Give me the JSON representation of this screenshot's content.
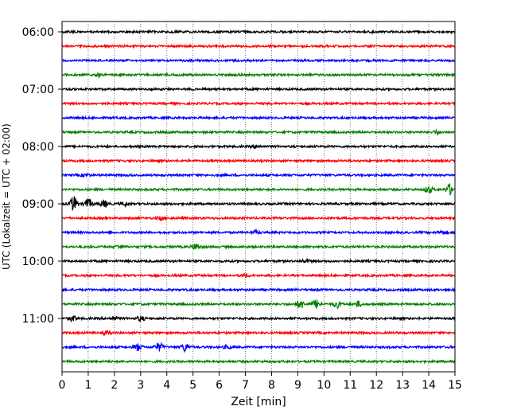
{
  "chart_data": {
    "type": "line",
    "title": "",
    "xlabel": "Zeit  [min]",
    "ylabel": "UTC (Lokalzeit = UTC + 02:00)",
    "xlim": [
      0,
      15
    ],
    "x_ticks": [
      "0",
      "1",
      "2",
      "3",
      "4",
      "5",
      "6",
      "7",
      "8",
      "9",
      "10",
      "11",
      "12",
      "13",
      "14",
      "15"
    ],
    "y_tick_labels": [
      "06:00",
      "07:00",
      "08:00",
      "09:00",
      "10:00",
      "11:00"
    ],
    "grid": "vertical dotted",
    "colors": [
      "#000000",
      "#ff0000",
      "#0000ff",
      "#008000"
    ],
    "traces": [
      {
        "start": "06:00",
        "color": "#000000",
        "bursts": []
      },
      {
        "start": "06:15",
        "color": "#ff0000",
        "bursts": []
      },
      {
        "start": "06:30",
        "color": "#0000ff",
        "bursts": []
      },
      {
        "start": "06:45",
        "color": "#008000",
        "bursts": [
          {
            "t": 1.4,
            "a": 2
          }
        ]
      },
      {
        "start": "07:00",
        "color": "#000000",
        "bursts": []
      },
      {
        "start": "07:15",
        "color": "#ff0000",
        "bursts": []
      },
      {
        "start": "07:30",
        "color": "#0000ff",
        "bursts": []
      },
      {
        "start": "07:45",
        "color": "#008000",
        "bursts": [
          {
            "t": 14.3,
            "a": 2
          }
        ]
      },
      {
        "start": "08:00",
        "color": "#000000",
        "bursts": [
          {
            "t": 7.4,
            "a": 2
          }
        ]
      },
      {
        "start": "08:15",
        "color": "#ff0000",
        "bursts": []
      },
      {
        "start": "08:30",
        "color": "#0000ff",
        "bursts": [
          {
            "t": 0.9,
            "a": 2
          }
        ]
      },
      {
        "start": "08:45",
        "color": "#008000",
        "bursts": [
          {
            "t": 14.0,
            "a": 4
          },
          {
            "t": 14.8,
            "a": 6
          }
        ]
      },
      {
        "start": "09:00",
        "color": "#000000",
        "bursts": [
          {
            "t": 0.45,
            "a": 9
          },
          {
            "t": 1.0,
            "a": 6
          },
          {
            "t": 1.6,
            "a": 4
          },
          {
            "t": 2.4,
            "a": 2
          }
        ]
      },
      {
        "start": "09:15",
        "color": "#ff0000",
        "bursts": [
          {
            "t": 3.8,
            "a": 2
          }
        ]
      },
      {
        "start": "09:30",
        "color": "#0000ff",
        "bursts": [
          {
            "t": 7.4,
            "a": 2
          },
          {
            "t": 14.5,
            "a": 2
          }
        ]
      },
      {
        "start": "09:45",
        "color": "#008000",
        "bursts": [
          {
            "t": 2.2,
            "a": 2
          },
          {
            "t": 5.1,
            "a": 4
          }
        ]
      },
      {
        "start": "10:00",
        "color": "#000000",
        "bursts": [
          {
            "t": 9.3,
            "a": 2
          }
        ]
      },
      {
        "start": "10:15",
        "color": "#ff0000",
        "bursts": [
          {
            "t": 7.0,
            "a": 2
          }
        ]
      },
      {
        "start": "10:30",
        "color": "#0000ff",
        "bursts": []
      },
      {
        "start": "10:45",
        "color": "#008000",
        "bursts": [
          {
            "t": 9.1,
            "a": 5
          },
          {
            "t": 9.7,
            "a": 5
          },
          {
            "t": 10.5,
            "a": 4
          },
          {
            "t": 11.3,
            "a": 3
          }
        ]
      },
      {
        "start": "11:00",
        "color": "#000000",
        "bursts": [
          {
            "t": 0.4,
            "a": 3
          },
          {
            "t": 2.0,
            "a": 2
          },
          {
            "t": 3.0,
            "a": 3
          }
        ]
      },
      {
        "start": "11:15",
        "color": "#ff0000",
        "bursts": [
          {
            "t": 1.7,
            "a": 2
          }
        ]
      },
      {
        "start": "11:30",
        "color": "#0000ff",
        "bursts": [
          {
            "t": 2.9,
            "a": 4
          },
          {
            "t": 3.7,
            "a": 5
          },
          {
            "t": 4.7,
            "a": 5
          },
          {
            "t": 6.3,
            "a": 2
          }
        ]
      },
      {
        "start": "11:45",
        "color": "#008000",
        "bursts": []
      }
    ]
  }
}
